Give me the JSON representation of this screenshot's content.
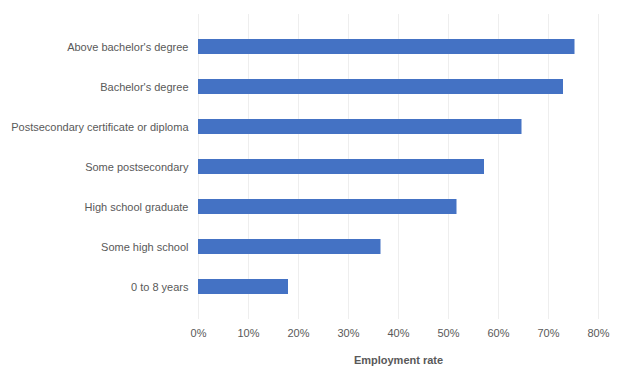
{
  "chart_data": {
    "type": "bar",
    "orientation": "horizontal",
    "categories": [
      "Above bachelor's degree",
      "Bachelor's degree",
      "Postsecondary certificate or diploma",
      "Some postsecondary",
      "High school graduate",
      "Some high school",
      "0 to 8 years"
    ],
    "values": [
      75.3,
      73.0,
      64.7,
      57.2,
      51.7,
      36.5,
      18.0
    ],
    "color": "#4472c4",
    "xlabel": "Employment rate",
    "xlim": [
      0,
      80
    ],
    "xticks": [
      {
        "value": 0,
        "label": "0%"
      },
      {
        "value": 10,
        "label": "10%"
      },
      {
        "value": 20,
        "label": "20%"
      },
      {
        "value": 30,
        "label": "30%"
      },
      {
        "value": 40,
        "label": "40%"
      },
      {
        "value": 50,
        "label": "50%"
      },
      {
        "value": 60,
        "label": "60%"
      },
      {
        "value": 70,
        "label": "70%"
      },
      {
        "value": 80,
        "label": "80%"
      }
    ],
    "grid": true
  }
}
